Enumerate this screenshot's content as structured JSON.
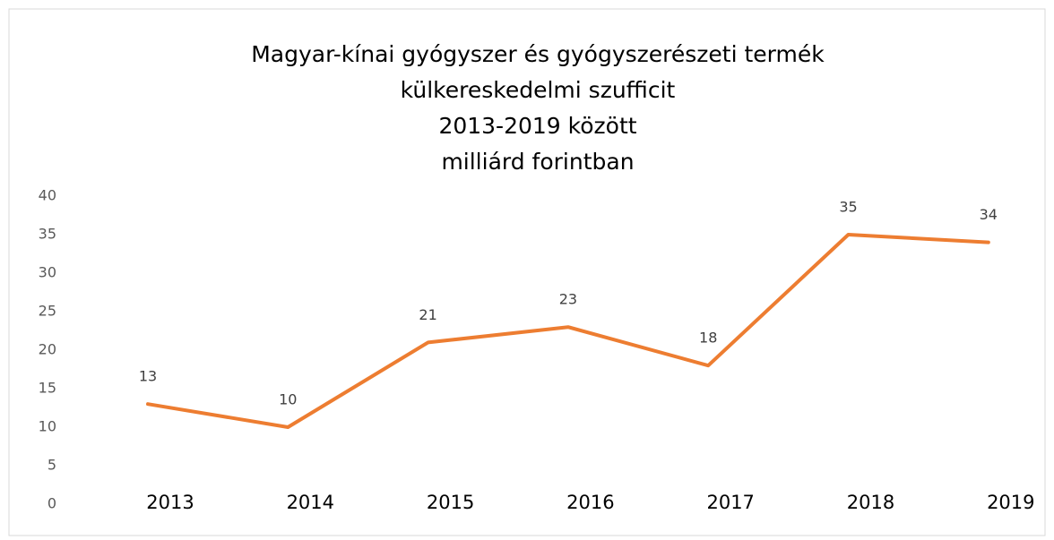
{
  "chart_data": {
    "type": "line",
    "title": [
      "Magyar-kínai gyógyszer és gyógyszerészeti termék",
      "külkereskedelmi szufficit",
      "2013-2019 között",
      "milliárd forintban"
    ],
    "categories": [
      "2013",
      "2014",
      "2015",
      "2016",
      "2017",
      "2018",
      "2019"
    ],
    "series": [
      {
        "name": "szufficit",
        "color": "#ed7d31",
        "values": [
          13,
          10,
          21,
          23,
          18,
          35,
          34
        ]
      }
    ],
    "ylim": [
      0,
      40
    ],
    "yticks": [
      0,
      5,
      10,
      15,
      20,
      25,
      30,
      35,
      40
    ],
    "grid": false,
    "legend": false
  }
}
